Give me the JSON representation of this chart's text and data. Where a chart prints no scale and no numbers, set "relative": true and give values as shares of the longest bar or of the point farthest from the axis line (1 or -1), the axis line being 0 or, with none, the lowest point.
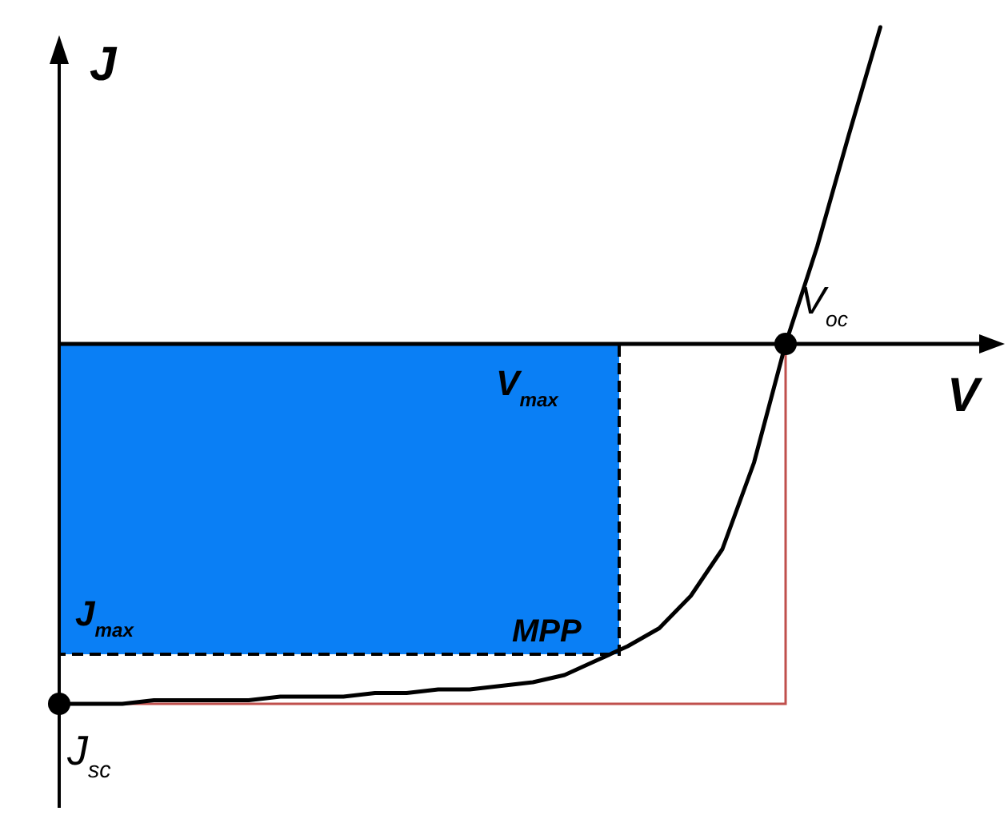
{
  "chart_data": {
    "type": "line",
    "relative": true,
    "xlabel": "V",
    "ylabel": "J",
    "categories": [
      null,
      null,
      null,
      null,
      null,
      null,
      null,
      null,
      null,
      null,
      null,
      null,
      null,
      null,
      null,
      null,
      null,
      null,
      null,
      null,
      null,
      null,
      null,
      null,
      null,
      null,
      null
    ],
    "series": [
      {
        "color": "#000000",
        "values": [
          -1,
          -1,
          -1,
          -0.99,
          -0.99,
          -0.99,
          -0.99,
          -0.98,
          -0.98,
          -0.98,
          -0.97,
          -0.97,
          -0.96,
          -0.96,
          -0.95,
          -0.94,
          -0.92,
          -0.88,
          -0.84,
          -0.79,
          -0.7,
          -0.57,
          -0.33,
          0,
          0.27,
          0.58,
          0.88
        ]
      }
    ],
    "annotations": [
      "V$_{oc}$",
      "V$_{max}$",
      "MPP",
      "J$_{max}$",
      "J$_{sc}$"
    ]
  }
}
